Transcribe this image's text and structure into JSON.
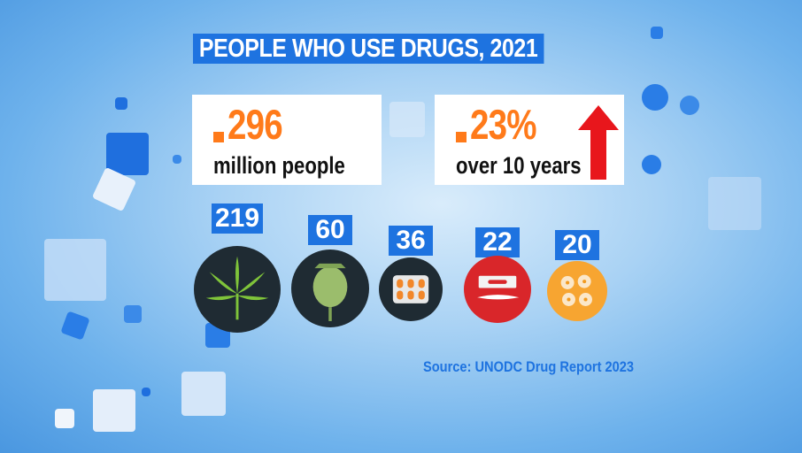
{
  "title": "PEOPLE WHO USE DRUGS, 2021",
  "stats": {
    "total": {
      "value": "296",
      "caption": "million people"
    },
    "growth": {
      "value": "23%",
      "caption": "over 10 years"
    }
  },
  "source": "Source: UNODC Drug Report 2023",
  "colors": {
    "accent": "#1e73e0",
    "highlight": "#ff7a1a",
    "arrow": "#e8161c"
  },
  "chart_data": {
    "type": "bar",
    "title": "PEOPLE WHO USE DRUGS, 2021",
    "categories": [
      "cannabis-icon",
      "opioid-poppy-icon",
      "pills-blister-icon",
      "cocaine-razor-icon",
      "ecstasy-tablets-icon"
    ],
    "values": [
      219,
      60,
      36,
      22,
      20
    ],
    "labels": [
      "219",
      "60",
      "36",
      "22",
      "20"
    ],
    "unit": "million"
  }
}
